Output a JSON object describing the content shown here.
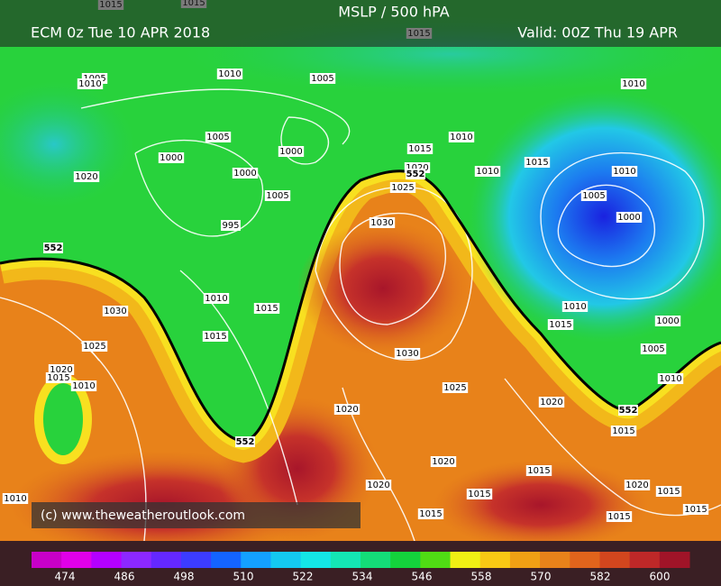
{
  "header": {
    "title": "MSLP / 500 hPA",
    "run": "ECM 0z Tue 10 APR 2018",
    "valid": "Valid: 00Z Thu 19 APR"
  },
  "credit": "(c) www.theweatheroutlook.com",
  "isobar_labels": [
    1015,
    1015,
    1015,
    1005,
    1010,
    1010,
    1005,
    1010,
    1005,
    1000,
    1000,
    1015,
    1010,
    1015,
    1020,
    1000,
    1020,
    1010,
    1010,
    1025,
    1005,
    1005,
    1000,
    995,
    1030,
    1010,
    1015,
    1030,
    1010,
    1015,
    1000,
    1015,
    1025,
    1005,
    1030,
    1020,
    1015,
    1010,
    1025,
    1020,
    1010,
    1020,
    1015,
    1020,
    1015,
    1020,
    1015,
    1020,
    1015,
    1010,
    1015,
    1015,
    1015
  ],
  "thickness_labels": [
    552,
    552,
    552,
    552
  ],
  "colorbar": {
    "labels": [
      474,
      486,
      498,
      510,
      522,
      534,
      546,
      558,
      570,
      582,
      600
    ]
  }
}
